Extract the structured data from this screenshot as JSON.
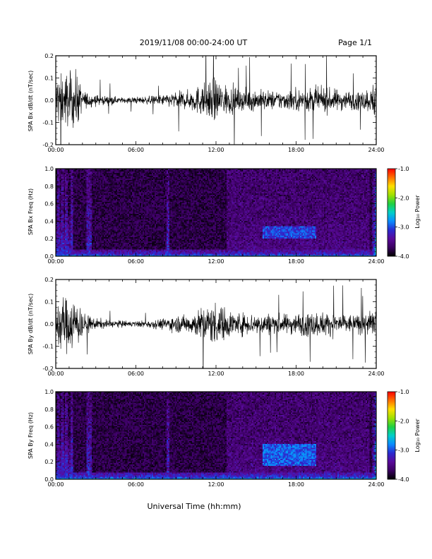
{
  "header": {
    "title": "2019/11/08  00:00-24:00 UT",
    "page": "Page 1/1"
  },
  "xlabel": "Universal Time (hh:mm)",
  "colors": {
    "trace": "#000000",
    "colormap": [
      "#000000",
      "#3a0060",
      "#5a0a9a",
      "#2a2ad0",
      "#0a8cff",
      "#00d0c8",
      "#20d040",
      "#a0e000",
      "#ffe000",
      "#ff7000",
      "#ff0000"
    ]
  },
  "colorbar": {
    "label": "Log₁₀ Power",
    "ticks": [
      "-1.0",
      "-2.0",
      "-3.0",
      "-4.0"
    ],
    "range": [
      -4.0,
      -1.0
    ]
  },
  "chart_data": [
    {
      "type": "line",
      "ylabel": "SPA Bx dB/dt (nT/sec)",
      "xticks": [
        "00:00",
        "06:00",
        "12:00",
        "18:00",
        "24:00"
      ],
      "yticks": [
        "0.2",
        "0.1",
        "0.0",
        "-0.1",
        "-0.2"
      ],
      "xlim": [
        0,
        24
      ],
      "ylim": [
        -0.2,
        0.2
      ],
      "envelope": {
        "hours": [
          0,
          0.5,
          1,
          1.6,
          2,
          3,
          4,
          5,
          6,
          7,
          8,
          8.5,
          9,
          10,
          10.5,
          11,
          11.5,
          12,
          12.5,
          13,
          14,
          15,
          16,
          17,
          18,
          19,
          20,
          21,
          22,
          23,
          23.7,
          24
        ],
        "amplitude": [
          0.2,
          0.2,
          0.2,
          0.2,
          0.07,
          0.04,
          0.03,
          0.02,
          0.025,
          0.03,
          0.04,
          0.05,
          0.06,
          0.07,
          0.1,
          0.12,
          0.14,
          0.16,
          0.13,
          0.1,
          0.08,
          0.08,
          0.07,
          0.07,
          0.08,
          0.09,
          0.09,
          0.08,
          0.07,
          0.07,
          0.1,
          0.2
        ]
      }
    },
    {
      "type": "heatmap",
      "ylabel": "SPA Bx Freq (Hz)",
      "xticks": [
        "00:00",
        "06:00",
        "12:00",
        "18:00",
        "24:00"
      ],
      "yticks": [
        "1.0",
        "0.8",
        "0.6",
        "0.4",
        "0.2",
        "0.0"
      ],
      "xlim": [
        0,
        24
      ],
      "ylim": [
        0.0,
        1.0
      ],
      "zlim": [
        -4.0,
        -1.0
      ],
      "features": {
        "background_log_power": -3.95,
        "low_freq_band": {
          "max_hz": 0.08,
          "log_power": -3.3
        },
        "vertical_streaks_hours": [
          0.2,
          0.5,
          0.8,
          1.2,
          2.4,
          2.6,
          8.4,
          23.8
        ],
        "active_region_hours": [
          12.8,
          23.5
        ],
        "enhanced_band": {
          "hours": [
            15.5,
            19.5
          ],
          "hz": [
            0.2,
            0.35
          ],
          "log_power": -3.0
        }
      }
    },
    {
      "type": "line",
      "ylabel": "SPA By dB/dt (nT/sec)",
      "xticks": [
        "00:00",
        "06:00",
        "12:00",
        "18:00",
        "24:00"
      ],
      "yticks": [
        "0.2",
        "0.1",
        "0.0",
        "-0.1",
        "-0.2"
      ],
      "xlim": [
        0,
        24
      ],
      "ylim": [
        -0.2,
        0.2
      ],
      "envelope": {
        "hours": [
          0,
          0.5,
          1,
          1.6,
          2,
          3,
          4,
          5,
          6,
          7,
          8,
          8.5,
          9,
          10,
          10.5,
          11,
          11.5,
          12,
          12.5,
          13,
          14,
          15,
          16,
          17,
          18,
          19,
          20,
          21,
          22,
          23,
          23.7,
          24
        ],
        "amplitude": [
          0.2,
          0.2,
          0.2,
          0.2,
          0.08,
          0.04,
          0.03,
          0.025,
          0.02,
          0.03,
          0.04,
          0.05,
          0.06,
          0.07,
          0.1,
          0.12,
          0.14,
          0.16,
          0.13,
          0.1,
          0.08,
          0.08,
          0.08,
          0.07,
          0.08,
          0.09,
          0.09,
          0.08,
          0.07,
          0.07,
          0.1,
          0.2
        ]
      }
    },
    {
      "type": "heatmap",
      "ylabel": "SPA By Freq (Hz)",
      "xticks": [
        "00:00",
        "06:00",
        "12:00",
        "18:00",
        "24:00"
      ],
      "yticks": [
        "1.0",
        "0.8",
        "0.6",
        "0.4",
        "0.2",
        "0.0"
      ],
      "xlim": [
        0,
        24
      ],
      "ylim": [
        0.0,
        1.0
      ],
      "zlim": [
        -4.0,
        -1.0
      ],
      "features": {
        "background_log_power": -3.95,
        "low_freq_band": {
          "max_hz": 0.08,
          "log_power": -3.2
        },
        "vertical_streaks_hours": [
          0.2,
          0.5,
          0.8,
          1.2,
          2.4,
          2.6,
          8.4,
          23.8
        ],
        "active_region_hours": [
          12.8,
          23.5
        ],
        "enhanced_band": {
          "hours": [
            15.5,
            19.5
          ],
          "hz": [
            0.15,
            0.4
          ],
          "log_power": -2.9
        }
      }
    }
  ]
}
